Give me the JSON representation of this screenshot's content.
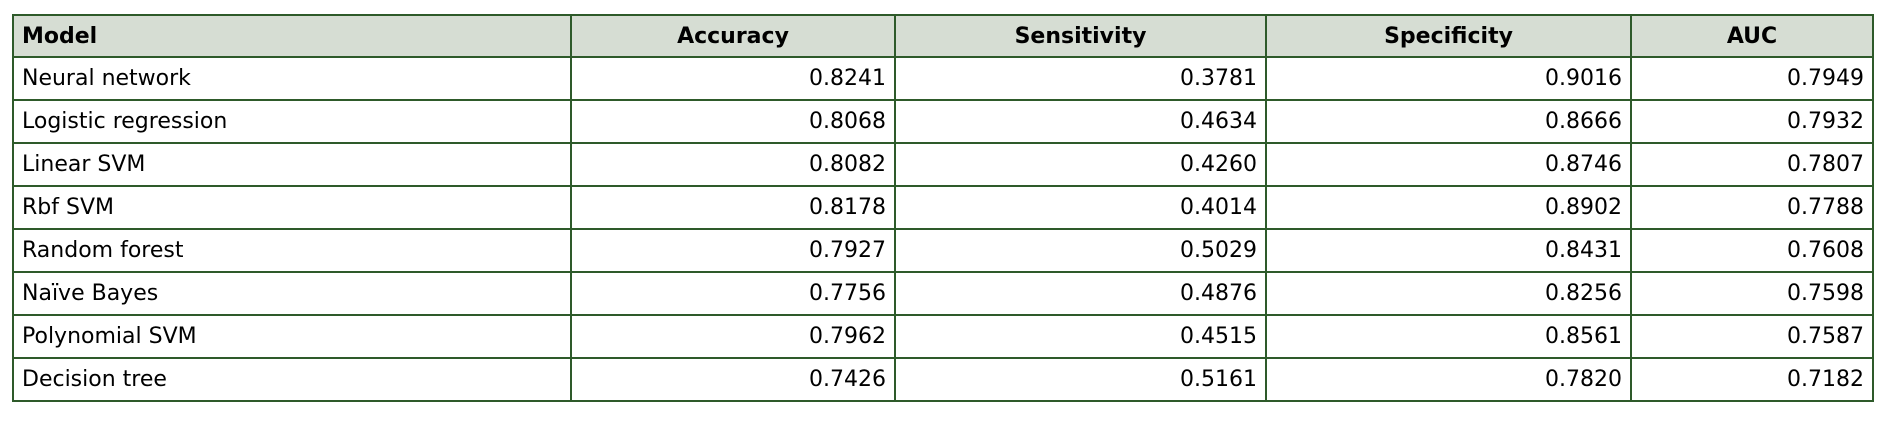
{
  "table": {
    "columns": [
      "Model",
      "Accuracy",
      "Sensitivity",
      "Specificity",
      "AUC"
    ],
    "rows": [
      [
        "Neural network",
        "0.8241",
        "0.3781",
        "0.9016",
        "0.7949"
      ],
      [
        "Logistic regression",
        "0.8068",
        "0.4634",
        "0.8666",
        "0.7932"
      ],
      [
        "Linear SVM",
        "0.8082",
        "0.4260",
        "0.8746",
        "0.7807"
      ],
      [
        "Rbf SVM",
        "0.8178",
        "0.4014",
        "0.8902",
        "0.7788"
      ],
      [
        "Random forest",
        "0.7927",
        "0.5029",
        "0.8431",
        "0.7608"
      ],
      [
        "Naïve Bayes",
        "0.7756",
        "0.4876",
        "0.8256",
        "0.7598"
      ],
      [
        "Polynomial SVM",
        "0.7962",
        "0.4515",
        "0.8561",
        "0.7587"
      ],
      [
        "Decision tree",
        "0.7426",
        "0.5161",
        "0.7820",
        "0.7182"
      ]
    ]
  },
  "colors": {
    "border": "#2e5a2a",
    "header_background": "#d6ddd3",
    "cell_background": "#ffffff"
  }
}
